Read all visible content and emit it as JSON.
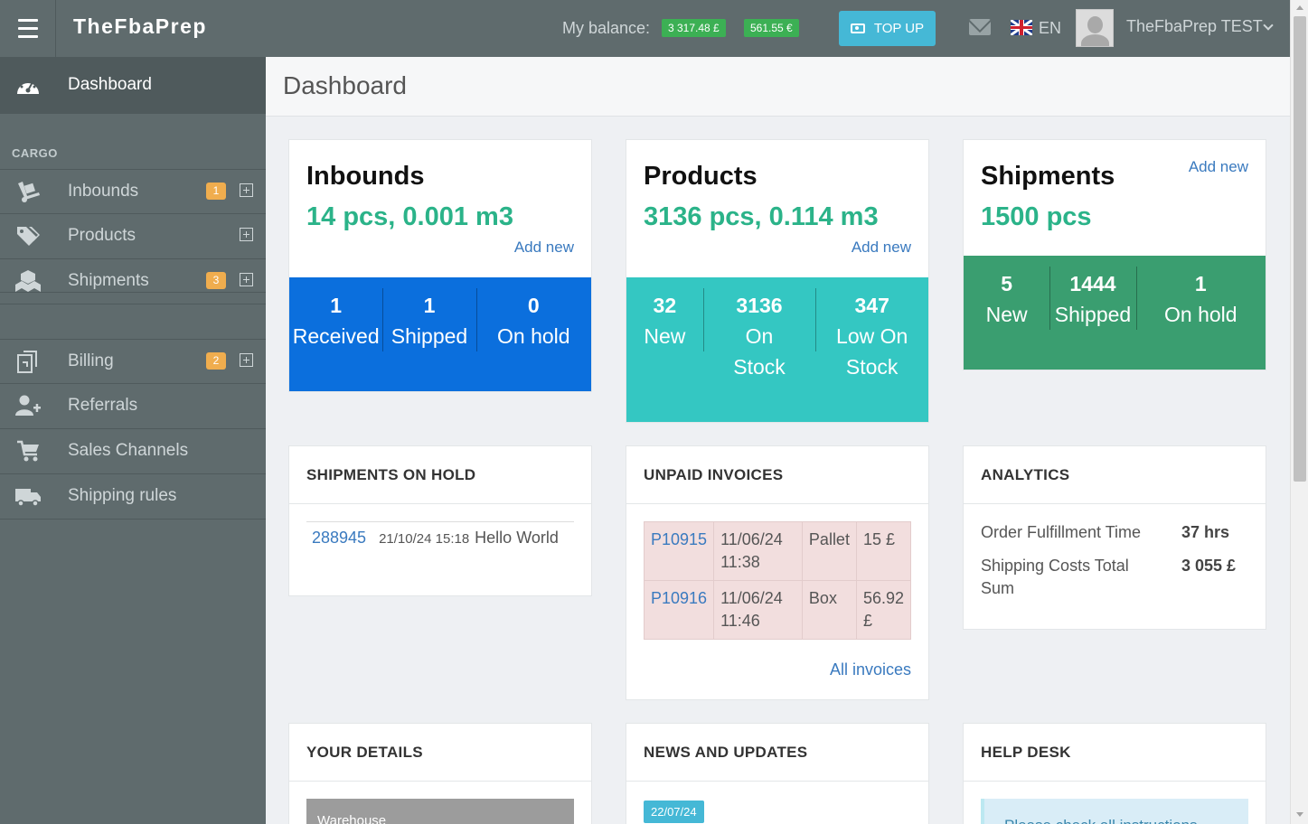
{
  "topbar": {
    "brand": "TheFbaPrep",
    "balance_label": "My balance:",
    "balance_gbp": "3 317.48 £",
    "balance_eur": "561.55 €",
    "topup_label": "TOP UP",
    "lang": "EN",
    "username": "TheFbaPrep TEST"
  },
  "sidebar": {
    "dashboard_label": "Dashboard",
    "section_cargo": "CARGO",
    "items": [
      {
        "label": "Inbounds",
        "badge": "1"
      },
      {
        "label": "Products"
      },
      {
        "label": "Shipments",
        "badge": "3"
      },
      {
        "label": "Billing",
        "badge": "2"
      },
      {
        "label": "Referrals"
      },
      {
        "label": "Sales Channels"
      },
      {
        "label": "Shipping rules"
      }
    ]
  },
  "page": {
    "title": "Dashboard"
  },
  "cards": {
    "inbounds": {
      "title": "Inbounds",
      "value": "14 pcs, 0.001 m3",
      "add_new": "Add new",
      "stats": [
        {
          "num": "1",
          "label": "Received"
        },
        {
          "num": "1",
          "label": "Shipped"
        },
        {
          "num": "0",
          "label": "On hold"
        }
      ],
      "color": "#0b6fdd"
    },
    "products": {
      "title": "Products",
      "value": "3136 pcs, 0.114 m3",
      "add_new": "Add new",
      "stats": [
        {
          "num": "32",
          "label": "New"
        },
        {
          "num": "3136",
          "label": "On Stock"
        },
        {
          "num": "347",
          "label": "Low On Stock"
        }
      ],
      "color": "#34c7c2"
    },
    "shipments": {
      "title": "Shipments",
      "value": "1500 pcs",
      "add_new": "Add new",
      "stats": [
        {
          "num": "5",
          "label": "New"
        },
        {
          "num": "1444",
          "label": "Shipped"
        },
        {
          "num": "1",
          "label": "On hold"
        }
      ],
      "color": "#3a9e70"
    }
  },
  "shipments_on_hold": {
    "title": "SHIPMENTS ON HOLD",
    "rows": [
      {
        "id": "288945",
        "date": "21/10/24 15:18",
        "message": "Hello World"
      }
    ]
  },
  "unpaid_invoices": {
    "title": "UNPAID INVOICES",
    "rows": [
      {
        "id": "P10915",
        "date": "11/06/24 11:38",
        "type": "Pallet",
        "amount": "15 £"
      },
      {
        "id": "P10916",
        "date": "11/06/24 11:46",
        "type": "Box",
        "amount": "56.92 £"
      }
    ],
    "all_link": "All invoices"
  },
  "analytics": {
    "title": "ANALYTICS",
    "rows": [
      {
        "label": "Order Fulfillment Time",
        "value": "37 hrs"
      },
      {
        "label": "Shipping Costs Total Sum",
        "value": "3 055 £"
      }
    ]
  },
  "your_details": {
    "title": "YOUR DETAILS",
    "warehouse_label": "Warehouse"
  },
  "news": {
    "title": "NEWS AND UPDATES",
    "date": "22/07/24"
  },
  "help_desk": {
    "title": "HELP DESK",
    "notice": "Please check all instructions"
  }
}
